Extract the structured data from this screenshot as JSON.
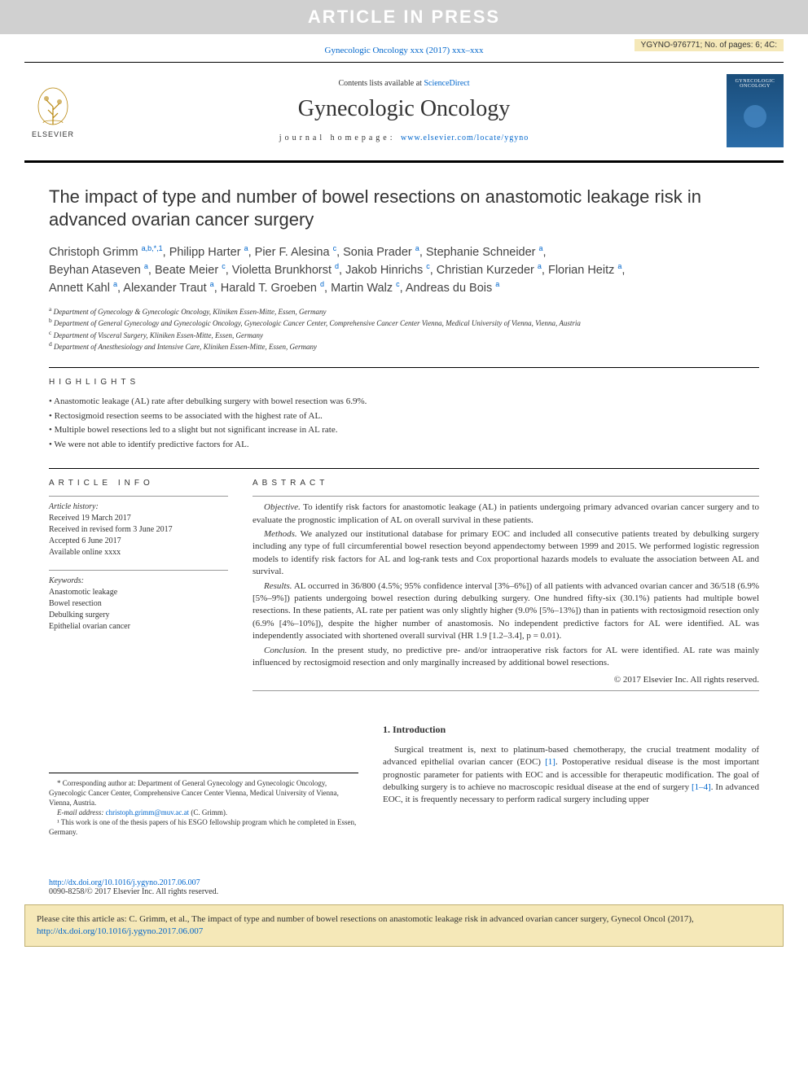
{
  "banner": {
    "text": "ARTICLE IN PRESS"
  },
  "cornerTag": "YGYNO-976771; No. of pages: 6; 4C:",
  "journalRef": {
    "prefix": "Gynecologic Oncology xxx (2017) xxx–xxx"
  },
  "header": {
    "contentsPrefix": "Contents lists available at ",
    "contentsLink": "ScienceDirect",
    "journalName": "Gynecologic Oncology",
    "homepagePrefix": "journal homepage: ",
    "homepageLink": "www.elsevier.com/locate/ygyno",
    "publisher": "ELSEVIER",
    "coverTitle": "GYNECOLOGIC ONCOLOGY"
  },
  "article": {
    "title": "The impact of type and number of bowel resections on anastomotic leakage risk in advanced ovarian cancer surgery",
    "authorsLine1": "Christoph Grimm |a,b,*,1|, Philipp Harter |a|, Pier F. Alesina |c|, Sonia Prader |a|, Stephanie Schneider |a|,",
    "authorsLine2": "Beyhan Ataseven |a|, Beate Meier |c|, Violetta Brunkhorst |d|, Jakob Hinrichs |c|, Christian Kurzeder |a|, Florian Heitz |a|,",
    "authorsLine3": "Annett Kahl |a|, Alexander Traut |a|, Harald T. Groeben |d|, Martin Walz |c|, Andreas du Bois |a|",
    "affiliations": [
      {
        "sup": "a",
        "text": "Department of Gynecology & Gynecologic Oncology, Kliniken Essen-Mitte, Essen, Germany"
      },
      {
        "sup": "b",
        "text": "Department of General Gynecology and Gynecologic Oncology, Gynecologic Cancer Center, Comprehensive Cancer Center Vienna, Medical University of Vienna, Vienna, Austria"
      },
      {
        "sup": "c",
        "text": "Department of Visceral Surgery, Kliniken Essen-Mitte, Essen, Germany"
      },
      {
        "sup": "d",
        "text": "Department of Anesthesiology and Intensive Care, Kliniken Essen-Mitte, Essen, Germany"
      }
    ]
  },
  "highlights": {
    "heading": "HIGHLIGHTS",
    "items": [
      "Anastomotic leakage (AL) rate after debulking surgery with bowel resection was 6.9%.",
      "Rectosigmoid resection seems to be associated with the highest rate of AL.",
      "Multiple bowel resections led to a slight but not significant increase in AL rate.",
      "We were not able to identify predictive factors for AL."
    ]
  },
  "articleInfo": {
    "heading": "ARTICLE INFO",
    "historyLabel": "Article history:",
    "received": "Received 19 March 2017",
    "revised": "Received in revised form 3 June 2017",
    "accepted": "Accepted 6 June 2017",
    "online": "Available online xxxx",
    "keywordsLabel": "Keywords:",
    "keywords": [
      "Anastomotic leakage",
      "Bowel resection",
      "Debulking surgery",
      "Epithelial ovarian cancer"
    ]
  },
  "abstract": {
    "heading": "ABSTRACT",
    "objectiveLabel": "Objective.",
    "objective": "To identify risk factors for anastomotic leakage (AL) in patients undergoing primary advanced ovarian cancer surgery and to evaluate the prognostic implication of AL on overall survival in these patients.",
    "methodsLabel": "Methods.",
    "methods": "We analyzed our institutional database for primary EOC and included all consecutive patients treated by debulking surgery including any type of full circumferential bowel resection beyond appendectomy between 1999 and 2015. We performed logistic regression models to identify risk factors for AL and log-rank tests and Cox proportional hazards models to evaluate the association between AL and survival.",
    "resultsLabel": "Results.",
    "results": "AL occurred in 36/800 (4.5%; 95% confidence interval [3%–6%]) of all patients with advanced ovarian cancer and 36/518 (6.9% [5%–9%]) patients undergoing bowel resection during debulking surgery. One hundred fifty-six (30.1%) patients had multiple bowel resections. In these patients, AL rate per patient was only slightly higher (9.0% [5%–13%]) than in patients with rectosigmoid resection only (6.9% [4%–10%]), despite the higher number of anastomosis. No independent predictive factors for AL were identified. AL was independently associated with shortened overall survival (HR 1.9 [1.2–3.4], p = 0.01).",
    "conclusionLabel": "Conclusion.",
    "conclusion": "In the present study, no predictive pre- and/or intraoperative risk factors for AL were identified. AL rate was mainly influenced by rectosigmoid resection and only marginally increased by additional bowel resections.",
    "copyright": "© 2017 Elsevier Inc. All rights reserved."
  },
  "intro": {
    "heading": "1. Introduction",
    "text": "Surgical treatment is, next to platinum-based chemotherapy, the crucial treatment modality of advanced epithelial ovarian cancer (EOC) [1]. Postoperative residual disease is the most important prognostic parameter for patients with EOC and is accessible for therapeutic modification. The goal of debulking surgery is to achieve no macroscopic residual disease at the end of surgery [1–4]. In advanced EOC, it is frequently necessary to perform radical surgery including upper"
  },
  "footnotes": {
    "corresponding": "* Corresponding author at: Department of General Gynecology and Gynecologic Oncology, Gynecologic Cancer Center, Comprehensive Cancer Center Vienna, Medical University of Vienna, Vienna, Austria.",
    "emailLabel": "E-mail address: ",
    "email": "christoph.grimm@muv.ac.at",
    "emailSuffix": " (C. Grimm).",
    "note1": "¹ This work is one of the thesis papers of his ESGO fellowship program which he completed in Essen, Germany."
  },
  "bottom": {
    "doi": "http://dx.doi.org/10.1016/j.ygyno.2017.06.007",
    "issn": "0090-8258/© 2017 Elsevier Inc. All rights reserved."
  },
  "citeBox": {
    "prefix": "Please cite this article as: C. Grimm, et al., The impact of type and number of bowel resections on anastomotic leakage risk in advanced ovarian cancer surgery, Gynecol Oncol (2017), ",
    "link": "http://dx.doi.org/10.1016/j.ygyno.2017.06.007"
  },
  "colors": {
    "bannerBg": "#d0d0d0",
    "bannerText": "#ffffff",
    "cornerBg": "#f5e8b8",
    "link": "#0066cc",
    "text": "#333333",
    "citeBg": "#f5e8b8",
    "citeBorder": "#c0b070"
  }
}
